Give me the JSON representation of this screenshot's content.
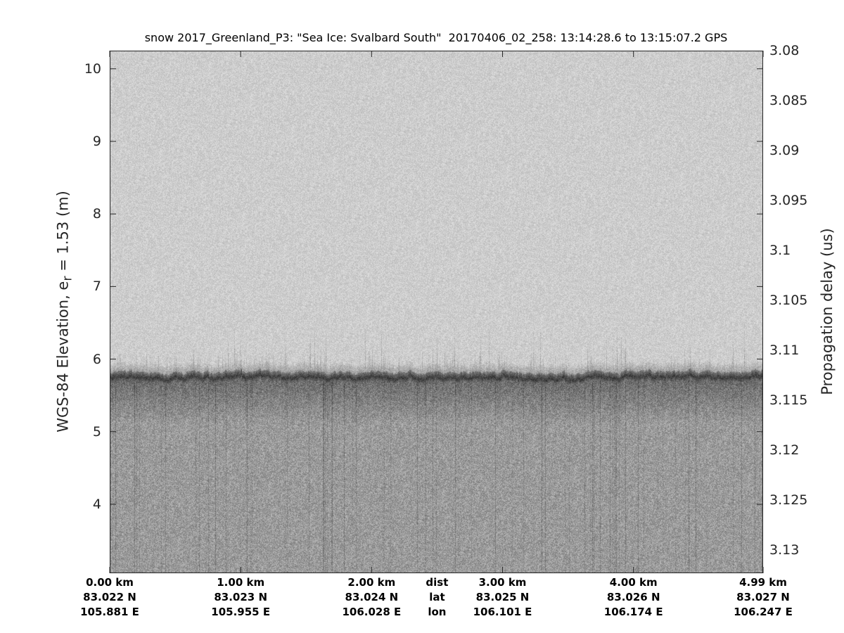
{
  "chart_data": {
    "type": "heatmap",
    "title": "snow 2017_Greenland_P3: \"Sea Ice: Svalbard South\"  20170406_02_258: 13:14:28.6 to 13:15:07.2 GPS",
    "ylabel": "WGS-84 Elevation, e",
    "ylabel_subscript": "r",
    "ylabel_suffix": " = 1.53 (m)",
    "ylabel_right": "Propagation delay (us)",
    "ylim": [
      3.05,
      10.25
    ],
    "yticks": [
      4,
      5,
      6,
      7,
      8,
      9,
      10
    ],
    "ylim_right": [
      3.08,
      3.1323
    ],
    "yticks_right": [
      "3.08",
      "3.085",
      "3.09",
      "3.095",
      "3.1",
      "3.105",
      "3.11",
      "3.115",
      "3.12",
      "3.125",
      "3.13"
    ],
    "xlim_km": [
      0,
      4.99
    ],
    "xticks": [
      {
        "dist_km": 0.0,
        "dist": "0.00 km",
        "lat": "83.022 N",
        "lon": "105.881 E"
      },
      {
        "dist_km": 1.0,
        "dist": "1.00 km",
        "lat": "83.023 N",
        "lon": "105.955 E"
      },
      {
        "dist_km": 2.0,
        "dist": "2.00 km",
        "lat": "83.024 N",
        "lon": "106.028 E"
      },
      {
        "dist_km": 3.0,
        "dist": "3.00 km",
        "lat": "83.025 N",
        "lon": "106.101 E"
      },
      {
        "dist_km": 4.0,
        "dist": "4.00 km",
        "lat": "83.026 N",
        "lon": "106.174 E"
      },
      {
        "dist_km": 4.99,
        "dist": "4.99 km",
        "lat": "83.027 N",
        "lon": "106.247 E"
      }
    ],
    "xrow_labels": {
      "dist": "dist",
      "lat": "lat",
      "lon": "lon",
      "dist_km": 2.5
    },
    "surface_elevation_m": 5.75,
    "colormap": "gray",
    "grid": false
  }
}
